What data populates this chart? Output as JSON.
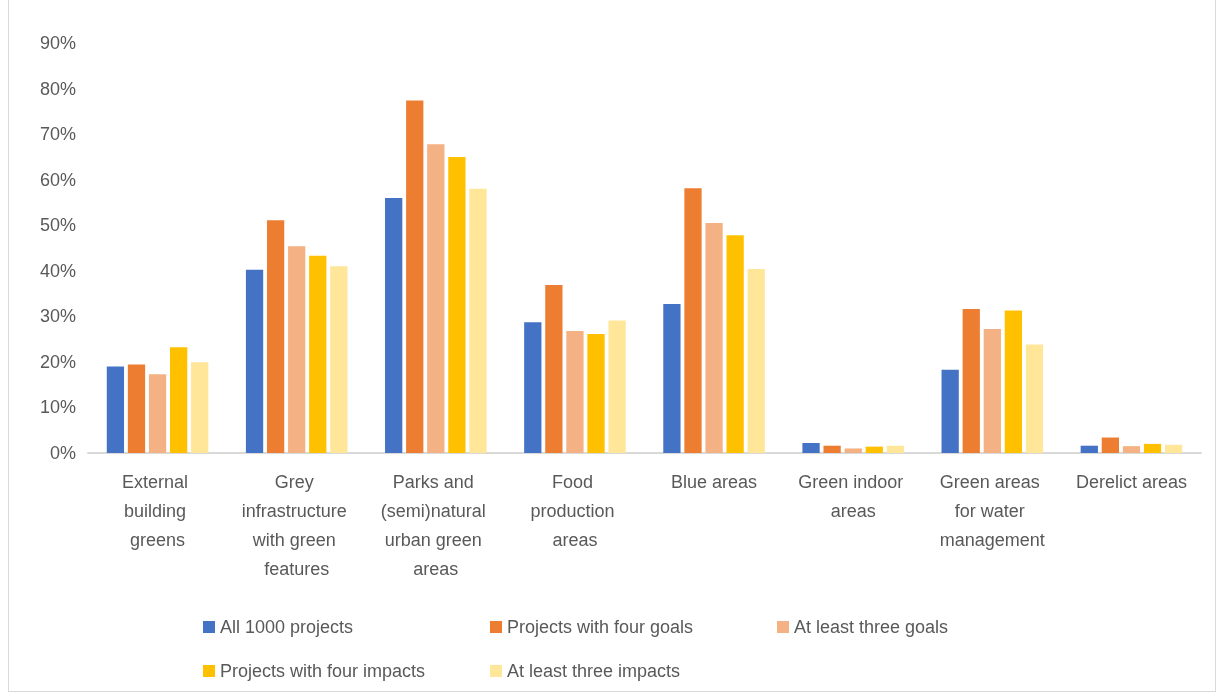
{
  "chart_data": {
    "type": "bar",
    "categories": [
      "External building greens",
      "Grey infrastructure with green features",
      "Parks and (semi)natural urban green areas",
      "Food production areas",
      "Blue areas",
      "Green indoor areas",
      "Green areas for water management",
      "Derelict areas"
    ],
    "series": [
      {
        "name": "All 1000 projects",
        "color": "#4472c4",
        "values": [
          19.0,
          40.2,
          56.0,
          28.7,
          32.7,
          2.2,
          18.3,
          1.6
        ]
      },
      {
        "name": "Projects with four goals",
        "color": "#ed7d31",
        "values": [
          19.4,
          51.1,
          77.4,
          36.9,
          58.1,
          1.6,
          31.6,
          3.4
        ]
      },
      {
        "name": "At least three goals",
        "color": "#f4b183",
        "values": [
          17.3,
          45.4,
          67.8,
          26.8,
          50.5,
          1.0,
          27.2,
          1.5
        ]
      },
      {
        "name": "Projects with four impacts",
        "color": "#ffc000",
        "values": [
          23.2,
          43.3,
          65.0,
          26.1,
          47.8,
          1.4,
          31.3,
          2.0
        ]
      },
      {
        "name": "At least three impacts",
        "color": "#ffe699",
        "values": [
          19.9,
          41.0,
          58.0,
          29.1,
          40.4,
          1.6,
          23.8,
          1.8
        ]
      }
    ],
    "ylim": [
      0,
      90
    ],
    "yticks": [
      {
        "value": 0,
        "label": "0%"
      },
      {
        "value": 10,
        "label": "10%"
      },
      {
        "value": 20,
        "label": "20%"
      },
      {
        "value": 30,
        "label": "30%"
      },
      {
        "value": 40,
        "label": "40%"
      },
      {
        "value": 50,
        "label": "50%"
      },
      {
        "value": 60,
        "label": "60%"
      },
      {
        "value": 70,
        "label": "70%"
      },
      {
        "value": 80,
        "label": "80%"
      },
      {
        "value": 90,
        "label": "90%"
      }
    ],
    "grid": false,
    "legend": "bottom"
  }
}
